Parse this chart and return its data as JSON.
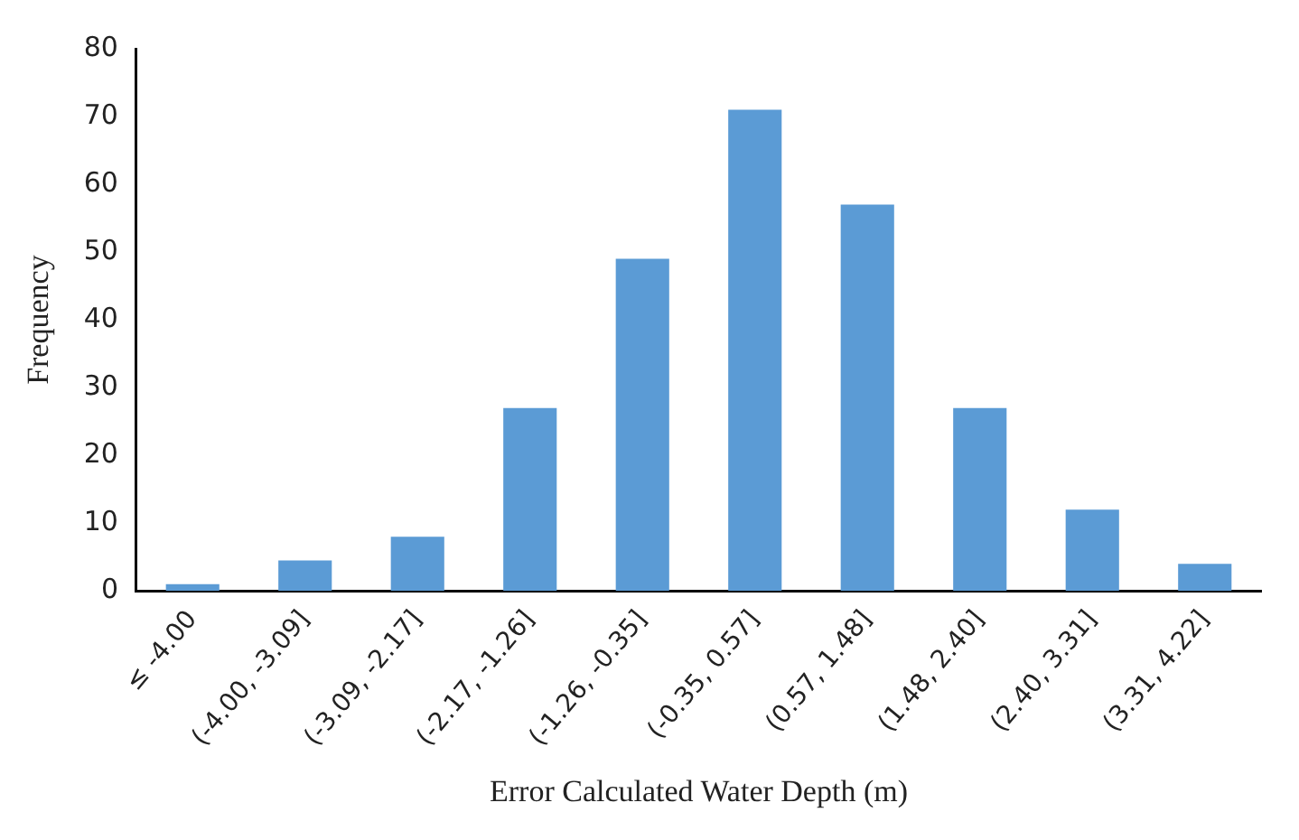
{
  "chart_data": {
    "type": "bar",
    "xlabel": "Error Calculated Water Depth (m)",
    "ylabel": "Frequency",
    "categories": [
      "≤ -4.00",
      "(-4.00, -3.09]",
      "(-3.09, -2.17]",
      "(-2.17, -1.26]",
      "(-1.26, -0.35]",
      "(-0.35, 0.57]",
      "(0.57, 1.48]",
      "(1.48, 2.40]",
      "(2.40, 3.31]",
      "(3.31, 4.22]"
    ],
    "values": [
      1,
      4.5,
      8,
      27,
      49,
      71,
      57,
      27,
      12,
      4
    ],
    "color": "#5b9bd5",
    "ylim": [
      0,
      80
    ],
    "yticks": [
      0,
      10,
      20,
      30,
      40,
      50,
      60,
      70,
      80
    ],
    "grid": false,
    "legend": false
  }
}
